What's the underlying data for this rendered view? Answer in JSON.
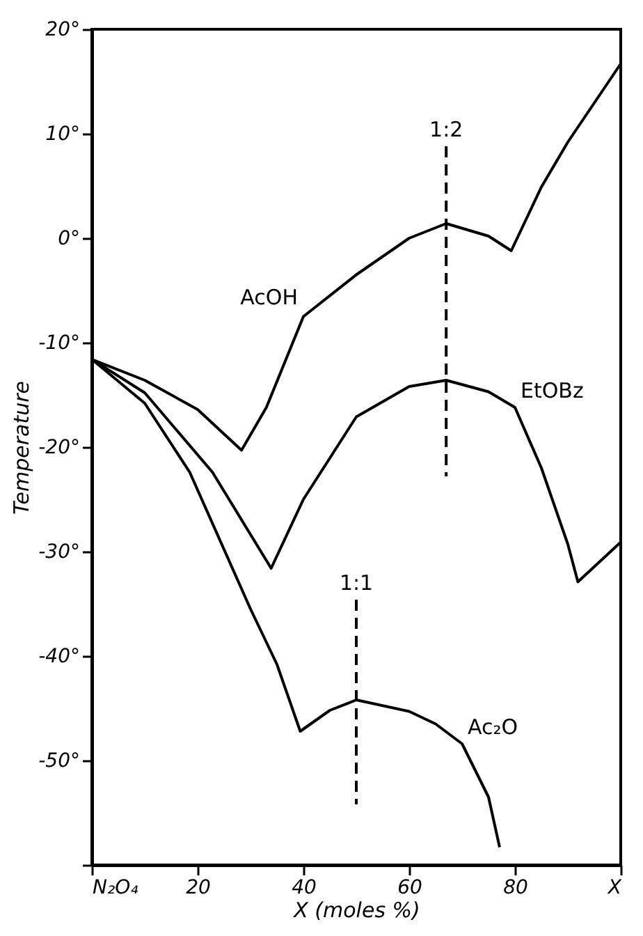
{
  "chart_data": {
    "type": "line",
    "xlabel": "X (moles %)",
    "ylabel": "Temperature",
    "xlim": [
      0,
      100
    ],
    "xticks": [
      {
        "value": 0,
        "label": "N₂O₄"
      },
      20,
      40,
      60,
      80,
      {
        "value": 100,
        "label": "X"
      }
    ],
    "ylim": [
      -60,
      20
    ],
    "yticks": [
      {
        "value": -60,
        "label": null
      },
      {
        "value": -50,
        "label": "-50°"
      },
      {
        "value": -40,
        "label": "-40°"
      },
      {
        "value": -30,
        "label": "-30°"
      },
      {
        "value": -20,
        "label": "-20°"
      },
      {
        "value": -10,
        "label": "-10°"
      },
      {
        "value": 0,
        "label": "0°"
      },
      {
        "value": 10,
        "label": "10°"
      },
      {
        "value": 20,
        "label": "20°"
      }
    ],
    "grid": false,
    "marker": "none",
    "line_style": "solid",
    "series": [
      {
        "color": "#000000",
        "x": [
          0,
          10,
          20,
          28.3,
          33,
          40,
          50,
          60,
          67,
          75,
          79.3,
          85,
          90,
          100
        ],
        "values": [
          -11.6,
          -13.6,
          -16.4,
          -20.3,
          -16.2,
          -7.5,
          -3.5,
          0,
          1.4,
          0.2,
          -1.2,
          4.9,
          9.2,
          16.7
        ]
      },
      {
        "color": "#000000",
        "x": [
          0,
          10,
          22.8,
          33.9,
          40,
          50,
          60,
          67,
          75,
          80,
          85,
          90,
          91.9,
          100
        ],
        "values": [
          -11.6,
          -14.8,
          -22.4,
          -31.6,
          -25,
          -17.1,
          -14.2,
          -13.6,
          -14.7,
          -16.2,
          -22,
          -29.3,
          -32.9,
          -29.1
        ]
      },
      {
        "color": "#000000",
        "x": [
          0,
          10,
          18.5,
          30,
          35,
          39.4,
          45,
          50,
          60,
          65,
          70,
          75,
          77.1
        ],
        "values": [
          -11.6,
          -15.8,
          -22.4,
          -35.5,
          -40.8,
          -47.2,
          -45.2,
          -44.2,
          -45.3,
          -46.5,
          -48.4,
          -53.5,
          -58.3
        ]
      },
      {
        "type": "line",
        "line_style": "dashed",
        "color": "#000000",
        "x": [
          67,
          67
        ],
        "values": [
          8.8,
          -22.8
        ]
      },
      {
        "type": "line",
        "line_style": "dashed",
        "color": "#000000",
        "x": [
          50,
          50
        ],
        "values": [
          -34.6,
          -54.2
        ]
      }
    ],
    "annotations": [
      {
        "text": "AcOH",
        "x": 40,
        "y": -7.5
      },
      {
        "text": "EtOBz",
        "x": 80,
        "y": -16.2
      },
      {
        "text": "Ac₂O",
        "x": 70,
        "y": -48.4
      },
      {
        "text": "1:2",
        "x": 67,
        "y": 8.8
      },
      {
        "text": "1:1",
        "x": 50,
        "y": -34.6
      }
    ]
  }
}
